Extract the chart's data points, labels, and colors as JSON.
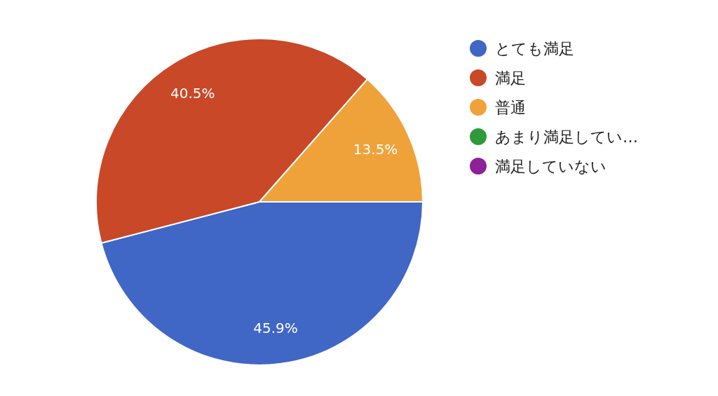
{
  "chart_data": {
    "type": "pie",
    "categories": [
      "とても満足",
      "満足",
      "普通",
      "あまり満足してい…",
      "満足していない"
    ],
    "values": [
      45.9,
      40.5,
      13.5,
      0,
      0
    ],
    "colors": [
      "#4066c6",
      "#c84828",
      "#f0a23a",
      "#2f9a3c",
      "#8e2199"
    ],
    "value_labels": [
      "45.9%",
      "40.5%",
      "13.5%",
      null,
      null
    ],
    "legend": "right"
  }
}
